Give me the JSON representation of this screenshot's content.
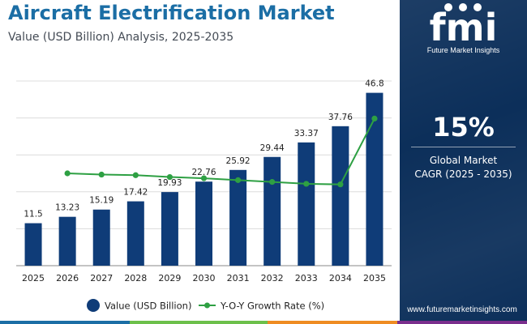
{
  "header": {
    "title": "Aircraft Electrification Market",
    "subtitle": "Value (USD Billion) Analysis, 2025-2035"
  },
  "chart_data": {
    "type": "bar",
    "categories": [
      "2025",
      "2026",
      "2027",
      "2028",
      "2029",
      "2030",
      "2031",
      "2032",
      "2033",
      "2034",
      "2035"
    ],
    "series": [
      {
        "name": "Value (USD Billion)",
        "type": "bar",
        "values": [
          11.5,
          13.23,
          15.19,
          17.42,
          19.93,
          22.76,
          25.92,
          29.44,
          33.37,
          37.76,
          46.8
        ],
        "labels": [
          "11.5",
          "13.23",
          "15.19",
          "17.42",
          "19.93",
          "22.76",
          "25.92",
          "29.44",
          "33.37",
          "37.76",
          "46.8"
        ]
      },
      {
        "name": "Y-O-Y Growth Rate (%)",
        "type": "line",
        "values": [
          null,
          15.0,
          14.8,
          14.7,
          14.4,
          14.2,
          13.9,
          13.6,
          13.3,
          13.2,
          23.9
        ]
      }
    ],
    "ylim": [
      0,
      50
    ],
    "y2lim": [
      0,
      30
    ],
    "gridlines": true,
    "legend_position": "bottom",
    "xlabel": "",
    "ylabel": ""
  },
  "legend": {
    "value_label": "Value (USD Billion)",
    "growth_label": "Y-O-Y Growth Rate (%)"
  },
  "side_panel": {
    "brand_mark": "fmi",
    "brand_name": "Future Market Insights",
    "cagr_value": "15%",
    "cagr_label_line1": "Global Market",
    "cagr_label_line2": "CAGR (2025 - 2035)",
    "website": "www.futuremarketinsights.com"
  },
  "colors": {
    "title": "#1b6ea5",
    "bar": "#0f3c78",
    "line": "#2ea043",
    "panel": "#0c2f5a",
    "footer_bar": [
      "#1b6ea5",
      "#6cc04a",
      "#ef8c22",
      "#7a2e8d"
    ]
  }
}
